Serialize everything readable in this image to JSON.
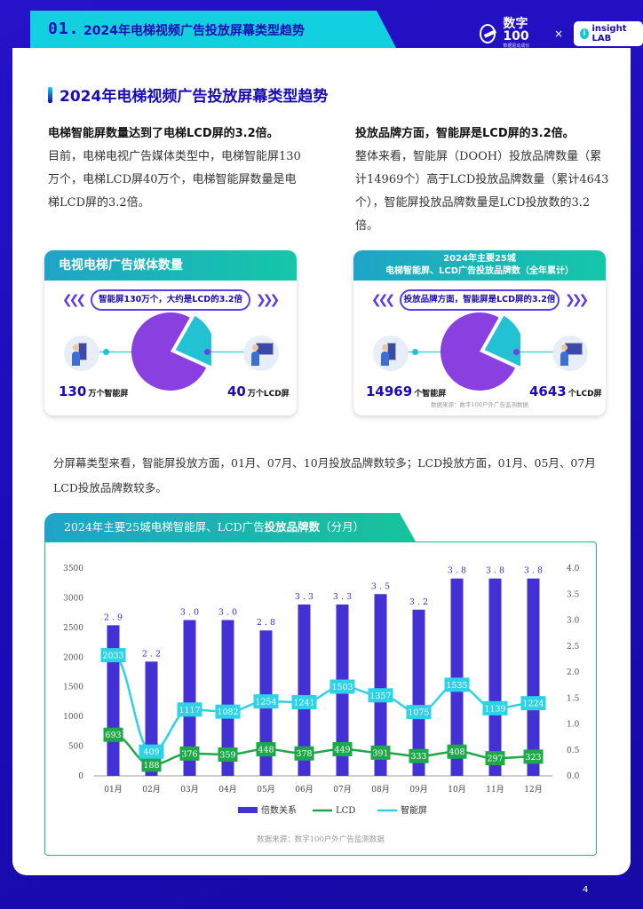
{
  "header": {
    "section_number": "01.",
    "section_title": "2024年电梯视频广告投放屏幕类型趋势",
    "brand_name": "数字100",
    "brand_sub": "数据驱动成长",
    "brand_x": "×",
    "partner": "insight LAB",
    "partner_icon": "i"
  },
  "section": {
    "title": "2024年电梯视频广告投放屏幕类型趋势"
  },
  "left_column": {
    "lead": "电梯智能屏数量达到了电梯LCD屏的3.2倍。",
    "body": "目前，电梯电视广告媒体类型中，电梯智能屏130万个，电梯LCD屏40万个，电梯智能屏数量是电梯LCD屏的3.2倍。"
  },
  "right_column": {
    "lead": "投放品牌方面，智能屏是LCD屏的3.2倍。",
    "body": "整体来看，智能屏（DOOH）投放品牌数量（累计14969个）高于LCD投放品牌数量（累计4643个），智能屏投放品牌数量是LCD投放数的3.2倍。"
  },
  "card_left": {
    "title": "电视电梯广告媒体数量",
    "banner": "智能屏130万个，大约是LCD的3.2倍",
    "left_value": "130",
    "left_unit": "万个智能屏",
    "right_value": "40",
    "right_unit": "万个LCD屏",
    "pie": [
      {
        "label": "智能屏",
        "value": 130
      },
      {
        "label": "LCD",
        "value": 40
      }
    ]
  },
  "card_right": {
    "title_line1": "2024年主要25城",
    "title_line2": "电梯智能屏、LCD广告投放品牌数（全年累计）",
    "banner": "投放品牌方面，智能屏是LCD屏的3.2倍",
    "left_value": "14969",
    "left_unit": "个智能屏",
    "right_value": "4643",
    "right_unit": "个LCD屏",
    "source": "数据来源：数字100户外广告监测数据",
    "pie": [
      {
        "label": "智能屏",
        "value": 14969
      },
      {
        "label": "LCD",
        "value": 4643
      }
    ]
  },
  "paragraph": "分屏幕类型来看，智能屏投放方面，01月、07月、10月投放品牌数较多；LCD投放方面，01月、05月、07月LCD投放品牌数较多。",
  "colors": {
    "bar": "#4431d6",
    "lcd": "#1ea84a",
    "smart": "#2dd2e6",
    "ratio_label": "#3a2bd0"
  },
  "chart_data": {
    "type": "bar",
    "title_plain": "2024年主要25城电梯智能屏、LCD广告",
    "title_bold": "投放品牌数",
    "title_tail": "（分月）",
    "categories": [
      "01月",
      "02月",
      "03月",
      "04月",
      "05月",
      "06月",
      "07月",
      "08月",
      "09月",
      "10月",
      "11月",
      "12月"
    ],
    "ylim": [
      0,
      3500
    ],
    "yticks": [
      0,
      500,
      1000,
      1500,
      2000,
      2500,
      3000,
      3500
    ],
    "y2lim": [
      0,
      4.0
    ],
    "y2ticks": [
      "0.0",
      "0.5",
      "1.0",
      "1.5",
      "2.0",
      "2.5",
      "3.0",
      "3.5",
      "4.0"
    ],
    "series": [
      {
        "name": "倍数关系",
        "type": "bar",
        "axis": "right",
        "values": [
          2.9,
          2.2,
          3.0,
          3.0,
          2.8,
          3.3,
          3.3,
          3.5,
          3.2,
          3.8,
          3.8,
          3.8
        ]
      },
      {
        "name": "LCD",
        "type": "line",
        "axis": "left",
        "values": [
          693,
          188,
          376,
          359,
          448,
          378,
          449,
          391,
          333,
          408,
          297,
          323
        ]
      },
      {
        "name": "智能屏",
        "type": "line",
        "axis": "left",
        "values": [
          2033,
          409,
          1117,
          1082,
          1254,
          1241,
          1503,
          1357,
          1075,
          1535,
          1139,
          1224
        ]
      }
    ],
    "legend": [
      "倍数关系",
      "LCD",
      "智能屏"
    ],
    "legend_position": "bottom",
    "source": "数据来源：数字100户外广告监测数据"
  },
  "page_number": "4"
}
